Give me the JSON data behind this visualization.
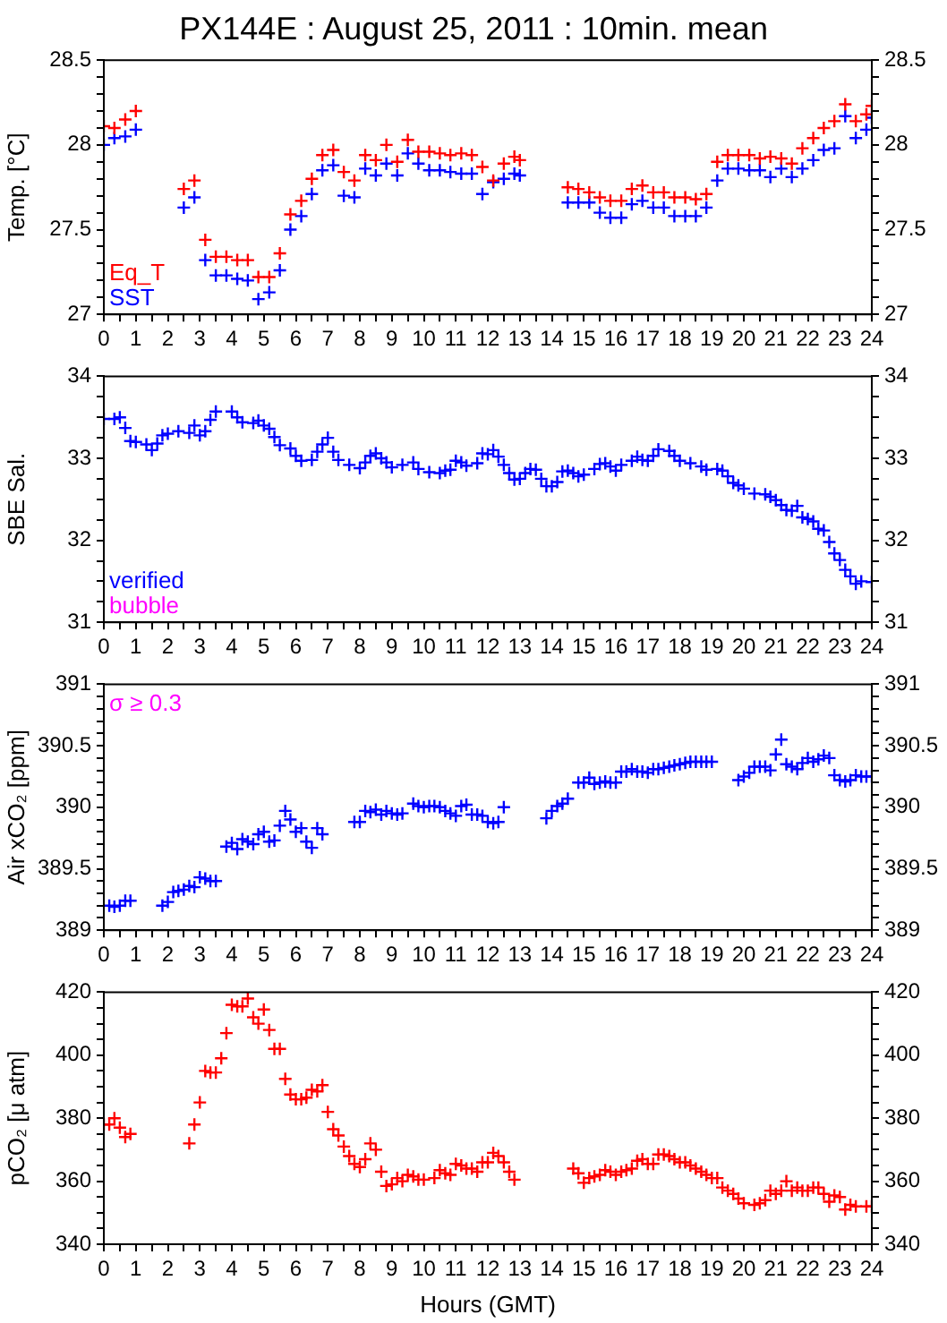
{
  "chart_data": [
    {
      "type": "scatter",
      "title": "PX144E : August 25, 2011 : 10min. mean",
      "ylabel": "Temp. [°C]",
      "marker": "cross",
      "legend": "bottom left",
      "xlim": [
        0,
        24
      ],
      "xticks": [
        0,
        {
          "value": 0.5,
          "label": null
        },
        1,
        {
          "value": 1.5,
          "label": null
        },
        2,
        {
          "value": 2.5,
          "label": null
        },
        3,
        {
          "value": 3.5,
          "label": null
        },
        4,
        {
          "value": 4.5,
          "label": null
        },
        5,
        {
          "value": 5.5,
          "label": null
        },
        6,
        {
          "value": 6.5,
          "label": null
        },
        7,
        {
          "value": 7.5,
          "label": null
        },
        8,
        {
          "value": 8.5,
          "label": null
        },
        9,
        {
          "value": 9.5,
          "label": null
        },
        10,
        {
          "value": 10.5,
          "label": null
        },
        11,
        {
          "value": 11.5,
          "label": null
        },
        12,
        {
          "value": 12.5,
          "label": null
        },
        13,
        {
          "value": 13.5,
          "label": null
        },
        14,
        {
          "value": 14.5,
          "label": null
        },
        15,
        {
          "value": 15.5,
          "label": null
        },
        16,
        {
          "value": 16.5,
          "label": null
        },
        17,
        {
          "value": 17.5,
          "label": null
        },
        18,
        {
          "value": 18.5,
          "label": null
        },
        19,
        {
          "value": 19.5,
          "label": null
        },
        20,
        {
          "value": 20.5,
          "label": null
        },
        21,
        {
          "value": 21.5,
          "label": null
        },
        22,
        {
          "value": 22.5,
          "label": null
        },
        23,
        {
          "value": 23.5,
          "label": null
        },
        24
      ],
      "ylim": [
        27,
        28.5
      ],
      "yticks": [
        27,
        {
          "value": 27.1,
          "label": null
        },
        {
          "value": 27.2,
          "label": null
        },
        {
          "value": 27.3,
          "label": null
        },
        {
          "value": 27.4,
          "label": null
        },
        27.5,
        {
          "value": 27.6,
          "label": null
        },
        {
          "value": 27.7,
          "label": null
        },
        {
          "value": 27.8,
          "label": null
        },
        {
          "value": 27.9,
          "label": null
        },
        28,
        {
          "value": 28.1,
          "label": null
        },
        {
          "value": 28.2,
          "label": null
        },
        {
          "value": 28.3,
          "label": null
        },
        {
          "value": 28.4,
          "label": null
        },
        28.5
      ],
      "y2lim": [
        27,
        28.5
      ],
      "y2ticks": [
        27,
        {
          "value": 27.1,
          "label": null
        },
        {
          "value": 27.2,
          "label": null
        },
        {
          "value": 27.3,
          "label": null
        },
        {
          "value": 27.4,
          "label": null
        },
        27.5,
        {
          "value": 27.6,
          "label": null
        },
        {
          "value": 27.7,
          "label": null
        },
        {
          "value": 27.8,
          "label": null
        },
        {
          "value": 27.9,
          "label": null
        },
        28,
        {
          "value": 28.1,
          "label": null
        },
        {
          "value": 28.2,
          "label": null
        },
        {
          "value": 28.3,
          "label": null
        },
        {
          "value": 28.4,
          "label": null
        },
        28.5
      ],
      "x": [
        0,
        0.33,
        0.67,
        1.0,
        2.5,
        2.83,
        3.17,
        3.5,
        3.83,
        4.17,
        4.5,
        4.83,
        5.17,
        5.5,
        5.83,
        6.17,
        6.5,
        6.83,
        7.17,
        7.5,
        7.83,
        8.17,
        8.5,
        8.83,
        9.17,
        9.5,
        9.83,
        10.17,
        10.5,
        10.83,
        11.17,
        11.5,
        11.83,
        12.17,
        12.5,
        12.83,
        13.0,
        14.5,
        14.83,
        15.17,
        15.5,
        15.83,
        16.17,
        16.5,
        16.83,
        17.17,
        17.5,
        17.83,
        18.17,
        18.5,
        18.83,
        19.17,
        19.5,
        19.83,
        20.17,
        20.5,
        20.83,
        21.17,
        21.5,
        21.83,
        22.17,
        22.5,
        22.83,
        23.17,
        23.5,
        23.83,
        24.0
      ],
      "series": [
        {
          "name": "Eq_T",
          "color": "#ff0000",
          "values": [
            28.11,
            28.1,
            28.15,
            28.2,
            27.74,
            27.79,
            27.44,
            27.34,
            27.34,
            27.32,
            27.32,
            27.22,
            27.22,
            27.36,
            27.59,
            27.67,
            27.8,
            27.94,
            27.97,
            27.84,
            27.79,
            27.94,
            27.91,
            28.0,
            27.9,
            28.03,
            27.96,
            27.96,
            27.95,
            27.94,
            27.95,
            27.94,
            27.87,
            27.79,
            27.89,
            27.93,
            27.91,
            27.75,
            27.74,
            27.72,
            27.69,
            27.67,
            27.67,
            27.74,
            27.76,
            27.72,
            27.72,
            27.69,
            27.69,
            27.68,
            27.71,
            27.9,
            27.94,
            27.94,
            27.94,
            27.92,
            27.93,
            27.92,
            27.89,
            27.98,
            28.04,
            28.1,
            28.14,
            28.24,
            28.14,
            28.18,
            28.23
          ]
        },
        {
          "name": "SST",
          "color": "#0000ff",
          "values": [
            28.0,
            28.04,
            28.05,
            28.09,
            27.63,
            27.69,
            27.32,
            27.23,
            27.23,
            27.21,
            27.2,
            27.09,
            27.13,
            27.26,
            27.5,
            27.58,
            27.71,
            27.85,
            27.88,
            27.7,
            27.69,
            27.86,
            27.82,
            27.89,
            27.82,
            27.95,
            27.89,
            27.85,
            27.85,
            27.84,
            27.83,
            27.83,
            27.71,
            27.78,
            27.8,
            27.83,
            27.82,
            27.66,
            27.66,
            27.66,
            27.6,
            27.57,
            27.57,
            27.65,
            27.67,
            27.63,
            27.63,
            27.58,
            27.58,
            27.58,
            27.63,
            27.79,
            27.86,
            27.86,
            27.85,
            27.85,
            27.81,
            27.86,
            27.81,
            27.86,
            27.91,
            27.97,
            27.98,
            28.17,
            28.04,
            28.09,
            28.16
          ]
        }
      ]
    },
    {
      "type": "scatter",
      "ylabel": "SBE Sal.",
      "marker": "cross",
      "legend": "bottom left",
      "xlim": [
        0,
        24
      ],
      "xticks": [
        0,
        {
          "value": 0.5,
          "label": null
        },
        1,
        {
          "value": 1.5,
          "label": null
        },
        2,
        {
          "value": 2.5,
          "label": null
        },
        3,
        {
          "value": 3.5,
          "label": null
        },
        4,
        {
          "value": 4.5,
          "label": null
        },
        5,
        {
          "value": 5.5,
          "label": null
        },
        6,
        {
          "value": 6.5,
          "label": null
        },
        7,
        {
          "value": 7.5,
          "label": null
        },
        8,
        {
          "value": 8.5,
          "label": null
        },
        9,
        {
          "value": 9.5,
          "label": null
        },
        10,
        {
          "value": 10.5,
          "label": null
        },
        11,
        {
          "value": 11.5,
          "label": null
        },
        12,
        {
          "value": 12.5,
          "label": null
        },
        13,
        {
          "value": 13.5,
          "label": null
        },
        14,
        {
          "value": 14.5,
          "label": null
        },
        15,
        {
          "value": 15.5,
          "label": null
        },
        16,
        {
          "value": 16.5,
          "label": null
        },
        17,
        {
          "value": 17.5,
          "label": null
        },
        18,
        {
          "value": 18.5,
          "label": null
        },
        19,
        {
          "value": 19.5,
          "label": null
        },
        20,
        {
          "value": 20.5,
          "label": null
        },
        21,
        {
          "value": 21.5,
          "label": null
        },
        22,
        {
          "value": 22.5,
          "label": null
        },
        23,
        {
          "value": 23.5,
          "label": null
        },
        24
      ],
      "ylim": [
        31,
        34
      ],
      "yticks": [
        31,
        {
          "value": 31.25,
          "label": null
        },
        {
          "value": 31.5,
          "label": null
        },
        {
          "value": 31.75,
          "label": null
        },
        32,
        {
          "value": 32.25,
          "label": null
        },
        {
          "value": 32.5,
          "label": null
        },
        {
          "value": 32.75,
          "label": null
        },
        33,
        {
          "value": 33.25,
          "label": null
        },
        {
          "value": 33.5,
          "label": null
        },
        {
          "value": 33.75,
          "label": null
        },
        34
      ],
      "y2lim": [
        31,
        34
      ],
      "y2ticks": [
        31,
        {
          "value": 31.25,
          "label": null
        },
        {
          "value": 31.5,
          "label": null
        },
        {
          "value": 31.75,
          "label": null
        },
        32,
        {
          "value": 32.25,
          "label": null
        },
        {
          "value": 32.5,
          "label": null
        },
        {
          "value": 32.75,
          "label": null
        },
        33,
        {
          "value": 33.25,
          "label": null
        },
        {
          "value": 33.5,
          "label": null
        },
        {
          "value": 33.75,
          "label": null
        },
        34
      ],
      "series": [
        {
          "name": "verified",
          "color": "#0000ff",
          "x": [
            0,
            0.33,
            0.5,
            0.67,
            0.83,
            1.0,
            1.33,
            1.5,
            1.67,
            1.83,
            2.0,
            2.33,
            2.67,
            2.83,
            3.0,
            3.17,
            3.33,
            3.5,
            4.0,
            4.17,
            4.33,
            4.67,
            4.83,
            5.0,
            5.17,
            5.33,
            5.5,
            5.83,
            6.0,
            6.17,
            6.5,
            6.67,
            6.83,
            7.0,
            7.17,
            7.33,
            7.67,
            8.0,
            8.17,
            8.33,
            8.5,
            8.67,
            8.83,
            9.0,
            9.33,
            9.67,
            9.83,
            10.17,
            10.5,
            10.67,
            10.83,
            11.0,
            11.17,
            11.33,
            11.67,
            11.83,
            12.0,
            12.17,
            12.33,
            12.5,
            12.67,
            12.83,
            13.0,
            13.17,
            13.33,
            13.5,
            13.67,
            13.83,
            14.0,
            14.17,
            14.33,
            14.5,
            14.67,
            14.83,
            15.0,
            15.33,
            15.5,
            15.67,
            15.83,
            16.0,
            16.17,
            16.5,
            16.67,
            16.83,
            17.0,
            17.17,
            17.33,
            17.67,
            17.83,
            18.0,
            18.33,
            18.67,
            18.83,
            19.17,
            19.33,
            19.5,
            19.67,
            19.83,
            20.0,
            20.33,
            20.67,
            20.83,
            21.0,
            21.17,
            21.33,
            21.5,
            21.67,
            21.83,
            22.0,
            22.17,
            22.33,
            22.5,
            22.67,
            22.83,
            23.0,
            23.17,
            23.33,
            23.5,
            23.67,
            24.0
          ],
          "values": [
            33.48,
            33.48,
            33.5,
            33.37,
            33.21,
            33.2,
            33.17,
            33.1,
            33.18,
            33.28,
            33.3,
            33.33,
            33.31,
            33.4,
            33.28,
            33.33,
            33.47,
            33.57,
            33.57,
            33.5,
            33.44,
            33.43,
            33.46,
            33.4,
            33.36,
            33.26,
            33.16,
            33.12,
            33.03,
            32.97,
            32.98,
            33.08,
            33.17,
            33.25,
            33.08,
            32.98,
            32.92,
            32.88,
            32.95,
            33.03,
            33.06,
            33.0,
            32.95,
            32.89,
            32.92,
            32.95,
            32.87,
            32.83,
            32.82,
            32.85,
            32.86,
            32.97,
            32.95,
            32.91,
            32.94,
            33.06,
            33.05,
            33.1,
            33.02,
            32.92,
            32.82,
            32.74,
            32.75,
            32.82,
            32.87,
            32.86,
            32.75,
            32.66,
            32.66,
            32.71,
            32.84,
            32.85,
            32.82,
            32.78,
            32.8,
            32.87,
            32.93,
            32.94,
            32.9,
            32.85,
            32.92,
            32.97,
            33.02,
            32.98,
            32.97,
            33.03,
            33.11,
            33.09,
            33.03,
            32.97,
            32.94,
            32.9,
            32.86,
            32.87,
            32.85,
            32.78,
            32.7,
            32.67,
            32.63,
            32.57,
            32.56,
            32.53,
            32.49,
            32.43,
            32.37,
            32.36,
            32.42,
            32.28,
            32.26,
            32.23,
            32.14,
            32.12,
            31.98,
            31.84,
            31.76,
            31.64,
            31.56,
            31.47,
            31.5,
            31.49
          ]
        },
        {
          "name": "bubble",
          "color": "#ff00ff"
        }
      ]
    },
    {
      "type": "scatter",
      "ylabel": "Air xCO₂ [ppm]",
      "marker": "cross",
      "annotations": [
        "σ ≥ 0.3"
      ],
      "xlim": [
        0,
        24
      ],
      "xticks": [
        0,
        {
          "value": 0.5,
          "label": null
        },
        1,
        {
          "value": 1.5,
          "label": null
        },
        2,
        {
          "value": 2.5,
          "label": null
        },
        3,
        {
          "value": 3.5,
          "label": null
        },
        4,
        {
          "value": 4.5,
          "label": null
        },
        5,
        {
          "value": 5.5,
          "label": null
        },
        6,
        {
          "value": 6.5,
          "label": null
        },
        7,
        {
          "value": 7.5,
          "label": null
        },
        8,
        {
          "value": 8.5,
          "label": null
        },
        9,
        {
          "value": 9.5,
          "label": null
        },
        10,
        {
          "value": 10.5,
          "label": null
        },
        11,
        {
          "value": 11.5,
          "label": null
        },
        12,
        {
          "value": 12.5,
          "label": null
        },
        13,
        {
          "value": 13.5,
          "label": null
        },
        14,
        {
          "value": 14.5,
          "label": null
        },
        15,
        {
          "value": 15.5,
          "label": null
        },
        16,
        {
          "value": 16.5,
          "label": null
        },
        17,
        {
          "value": 17.5,
          "label": null
        },
        18,
        {
          "value": 18.5,
          "label": null
        },
        19,
        {
          "value": 19.5,
          "label": null
        },
        20,
        {
          "value": 20.5,
          "label": null
        },
        21,
        {
          "value": 21.5,
          "label": null
        },
        22,
        {
          "value": 22.5,
          "label": null
        },
        23,
        {
          "value": 23.5,
          "label": null
        },
        24
      ],
      "ylim": [
        389,
        391
      ],
      "yticks": [
        389,
        {
          "value": 389.1,
          "label": null
        },
        {
          "value": 389.2,
          "label": null
        },
        {
          "value": 389.3,
          "label": null
        },
        {
          "value": 389.4,
          "label": null
        },
        389.5,
        {
          "value": 389.6,
          "label": null
        },
        {
          "value": 389.7,
          "label": null
        },
        {
          "value": 389.8,
          "label": null
        },
        {
          "value": 389.9,
          "label": null
        },
        390,
        {
          "value": 390.1,
          "label": null
        },
        {
          "value": 390.2,
          "label": null
        },
        {
          "value": 390.3,
          "label": null
        },
        {
          "value": 390.4,
          "label": null
        },
        390.5,
        {
          "value": 390.6,
          "label": null
        },
        {
          "value": 390.7,
          "label": null
        },
        {
          "value": 390.8,
          "label": null
        },
        {
          "value": 390.9,
          "label": null
        },
        391
      ],
      "y2lim": [
        389,
        391
      ],
      "y2ticks": [
        389,
        {
          "value": 389.1,
          "label": null
        },
        {
          "value": 389.2,
          "label": null
        },
        {
          "value": 389.3,
          "label": null
        },
        {
          "value": 389.4,
          "label": null
        },
        389.5,
        {
          "value": 389.6,
          "label": null
        },
        {
          "value": 389.7,
          "label": null
        },
        {
          "value": 389.8,
          "label": null
        },
        {
          "value": 389.9,
          "label": null
        },
        390,
        {
          "value": 390.1,
          "label": null
        },
        {
          "value": 390.2,
          "label": null
        },
        {
          "value": 390.3,
          "label": null
        },
        {
          "value": 390.4,
          "label": null
        },
        390.5,
        {
          "value": 390.6,
          "label": null
        },
        {
          "value": 390.7,
          "label": null
        },
        {
          "value": 390.8,
          "label": null
        },
        {
          "value": 390.9,
          "label": null
        },
        391
      ],
      "series": [
        {
          "color": "#0000ff",
          "x": [
            0.17,
            0.33,
            0.5,
            0.67,
            0.83,
            1.83,
            2.0,
            2.17,
            2.33,
            2.5,
            2.67,
            2.83,
            3.0,
            3.17,
            3.33,
            3.5,
            3.83,
            4.0,
            4.17,
            4.33,
            4.5,
            4.67,
            4.83,
            5.0,
            5.17,
            5.33,
            5.5,
            5.67,
            5.83,
            6.0,
            6.17,
            6.33,
            6.5,
            6.67,
            6.83,
            7.83,
            8.0,
            8.17,
            8.33,
            8.5,
            8.67,
            8.83,
            9.0,
            9.17,
            9.33,
            9.67,
            9.83,
            10.0,
            10.17,
            10.33,
            10.5,
            10.67,
            10.83,
            11.0,
            11.17,
            11.33,
            11.5,
            11.67,
            11.83,
            12.0,
            12.17,
            12.33,
            12.5,
            13.83,
            14.0,
            14.17,
            14.33,
            14.5,
            14.83,
            15.0,
            15.17,
            15.33,
            15.5,
            15.67,
            15.83,
            16.0,
            16.17,
            16.33,
            16.5,
            16.67,
            16.83,
            17.0,
            17.17,
            17.33,
            17.5,
            17.67,
            17.83,
            18.0,
            18.17,
            18.33,
            18.5,
            18.67,
            18.83,
            19.0,
            19.83,
            20.0,
            20.17,
            20.33,
            20.5,
            20.67,
            20.83,
            21.0,
            21.17,
            21.33,
            21.5,
            21.67,
            21.83,
            22.0,
            22.17,
            22.33,
            22.5,
            22.67,
            22.83,
            23.0,
            23.17,
            23.33,
            23.5,
            23.67,
            23.83,
            24.0
          ],
          "values": [
            389.2,
            389.19,
            389.2,
            389.24,
            389.24,
            389.2,
            389.23,
            389.31,
            389.32,
            389.33,
            389.36,
            389.35,
            389.43,
            389.42,
            389.4,
            389.4,
            389.68,
            389.71,
            389.66,
            389.74,
            389.72,
            389.7,
            389.78,
            389.8,
            389.72,
            389.73,
            389.85,
            389.97,
            389.9,
            389.8,
            389.83,
            389.72,
            389.67,
            389.83,
            389.78,
            389.88,
            389.88,
            389.97,
            389.96,
            389.98,
            389.94,
            389.97,
            389.95,
            389.94,
            389.95,
            390.03,
            390.01,
            390.0,
            390.01,
            390.01,
            390.0,
            389.97,
            389.95,
            389.93,
            390.01,
            390.02,
            389.94,
            389.94,
            389.93,
            389.88,
            389.87,
            389.88,
            390.0,
            389.91,
            389.97,
            390.01,
            390.03,
            390.07,
            390.2,
            390.2,
            390.24,
            390.19,
            390.2,
            390.21,
            390.2,
            390.2,
            390.29,
            390.29,
            390.31,
            390.29,
            390.29,
            390.28,
            390.31,
            390.31,
            390.32,
            390.33,
            390.34,
            390.35,
            390.36,
            390.37,
            390.37,
            390.37,
            390.37,
            390.37,
            390.22,
            390.25,
            390.28,
            390.33,
            390.33,
            390.33,
            390.3,
            390.43,
            390.55,
            390.35,
            390.33,
            390.31,
            390.36,
            390.4,
            390.37,
            390.39,
            390.42,
            390.4,
            390.26,
            390.22,
            390.21,
            390.22,
            390.26,
            390.25,
            390.25,
            390.25
          ]
        }
      ]
    },
    {
      "type": "scatter",
      "ylabel": "pCO₂ [μ atm]",
      "xlabel": "Hours (GMT)",
      "marker": "cross",
      "xlim": [
        0,
        24
      ],
      "xticks": [
        0,
        {
          "value": 0.5,
          "label": null
        },
        1,
        {
          "value": 1.5,
          "label": null
        },
        2,
        {
          "value": 2.5,
          "label": null
        },
        3,
        {
          "value": 3.5,
          "label": null
        },
        4,
        {
          "value": 4.5,
          "label": null
        },
        5,
        {
          "value": 5.5,
          "label": null
        },
        6,
        {
          "value": 6.5,
          "label": null
        },
        7,
        {
          "value": 7.5,
          "label": null
        },
        8,
        {
          "value": 8.5,
          "label": null
        },
        9,
        {
          "value": 9.5,
          "label": null
        },
        10,
        {
          "value": 10.5,
          "label": null
        },
        11,
        {
          "value": 11.5,
          "label": null
        },
        12,
        {
          "value": 12.5,
          "label": null
        },
        13,
        {
          "value": 13.5,
          "label": null
        },
        14,
        {
          "value": 14.5,
          "label": null
        },
        15,
        {
          "value": 15.5,
          "label": null
        },
        16,
        {
          "value": 16.5,
          "label": null
        },
        17,
        {
          "value": 17.5,
          "label": null
        },
        18,
        {
          "value": 18.5,
          "label": null
        },
        19,
        {
          "value": 19.5,
          "label": null
        },
        20,
        {
          "value": 20.5,
          "label": null
        },
        21,
        {
          "value": 21.5,
          "label": null
        },
        22,
        {
          "value": 22.5,
          "label": null
        },
        23,
        {
          "value": 23.5,
          "label": null
        },
        24
      ],
      "ylim": [
        340,
        420
      ],
      "yticks": [
        340,
        {
          "value": 345,
          "label": null
        },
        {
          "value": 350,
          "label": null
        },
        {
          "value": 355,
          "label": null
        },
        360,
        {
          "value": 365,
          "label": null
        },
        {
          "value": 370,
          "label": null
        },
        {
          "value": 375,
          "label": null
        },
        380,
        {
          "value": 385,
          "label": null
        },
        {
          "value": 390,
          "label": null
        },
        {
          "value": 395,
          "label": null
        },
        400,
        {
          "value": 405,
          "label": null
        },
        {
          "value": 410,
          "label": null
        },
        {
          "value": 415,
          "label": null
        },
        420
      ],
      "y2lim": [
        340,
        420
      ],
      "y2ticks": [
        340,
        {
          "value": 345,
          "label": null
        },
        {
          "value": 350,
          "label": null
        },
        {
          "value": 355,
          "label": null
        },
        360,
        {
          "value": 365,
          "label": null
        },
        {
          "value": 370,
          "label": null
        },
        {
          "value": 375,
          "label": null
        },
        380,
        {
          "value": 385,
          "label": null
        },
        {
          "value": 390,
          "label": null
        },
        {
          "value": 395,
          "label": null
        },
        400,
        {
          "value": 405,
          "label": null
        },
        {
          "value": 410,
          "label": null
        },
        {
          "value": 415,
          "label": null
        },
        420
      ],
      "series": [
        {
          "color": "#ff0000",
          "x": [
            0,
            0.17,
            0.33,
            0.5,
            0.67,
            0.83,
            2.67,
            2.83,
            3.0,
            3.17,
            3.33,
            3.5,
            3.67,
            3.83,
            4.0,
            4.17,
            4.33,
            4.5,
            4.67,
            4.83,
            5.0,
            5.17,
            5.33,
            5.5,
            5.67,
            5.83,
            6.0,
            6.17,
            6.33,
            6.5,
            6.67,
            6.83,
            7.0,
            7.17,
            7.33,
            7.5,
            7.67,
            7.83,
            8.0,
            8.17,
            8.33,
            8.5,
            8.67,
            8.83,
            9.0,
            9.17,
            9.33,
            9.5,
            9.67,
            9.83,
            10.0,
            10.33,
            10.5,
            10.67,
            10.83,
            11.0,
            11.17,
            11.33,
            11.5,
            11.67,
            11.83,
            12.0,
            12.17,
            12.33,
            12.5,
            12.67,
            12.83,
            14.67,
            14.83,
            15.0,
            15.17,
            15.33,
            15.5,
            15.67,
            15.83,
            16.0,
            16.17,
            16.33,
            16.5,
            16.67,
            16.83,
            17.0,
            17.17,
            17.33,
            17.5,
            17.67,
            17.83,
            18.0,
            18.17,
            18.33,
            18.5,
            18.67,
            18.83,
            19.0,
            19.17,
            19.33,
            19.5,
            19.67,
            19.83,
            20.0,
            20.33,
            20.5,
            20.67,
            20.83,
            21.0,
            21.17,
            21.33,
            21.5,
            21.67,
            21.83,
            22.0,
            22.17,
            22.33,
            22.5,
            22.67,
            22.83,
            23.0,
            23.17,
            23.33,
            23.5,
            23.83,
            24.0
          ],
          "values": [
            378,
            378,
            380,
            377,
            374,
            375,
            372,
            378,
            385,
            395,
            394.5,
            394.5,
            399,
            407,
            416,
            415.5,
            415.5,
            418,
            412,
            410,
            414.5,
            408,
            402,
            402,
            392.5,
            387.5,
            386,
            386,
            386.5,
            389,
            388.5,
            390.5,
            382,
            376.5,
            374.5,
            371,
            368,
            365.5,
            364.5,
            367,
            372,
            370,
            363,
            358.5,
            359,
            361,
            360,
            362,
            361.5,
            360.5,
            360.5,
            361,
            363.5,
            362.5,
            362,
            365.5,
            365,
            364,
            364,
            363,
            366,
            366,
            369,
            368,
            366,
            363,
            360.5,
            364,
            362.5,
            359.5,
            361,
            361.5,
            362,
            363.5,
            363,
            362,
            363,
            363.5,
            364,
            366.5,
            367,
            365.5,
            365.5,
            368.5,
            368.5,
            368,
            367,
            366,
            366,
            365,
            364,
            363,
            362,
            361,
            361,
            358,
            357,
            356,
            354.5,
            353,
            352.5,
            353,
            354,
            357,
            356,
            357,
            360,
            357,
            358,
            357,
            357,
            358,
            358,
            356,
            353.5,
            355.5,
            355,
            351,
            352.5,
            352,
            352,
            352
          ]
        }
      ]
    }
  ]
}
